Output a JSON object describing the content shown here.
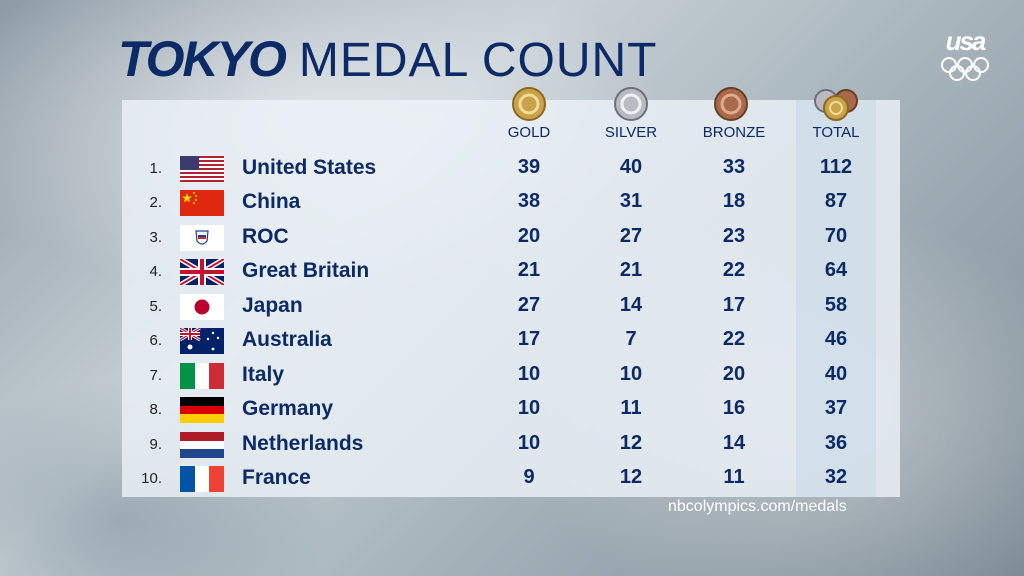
{
  "header": {
    "brand": "TOKYO",
    "title": "MEDAL COUNT"
  },
  "network": {
    "name": "usa",
    "logo_icon": "olympic-rings-icon"
  },
  "columns": {
    "gold": "GOLD",
    "silver": "SILVER",
    "bronze": "BRONZE",
    "total": "TOTAL"
  },
  "colors": {
    "text": "#0b2a66",
    "gold": "#c9a24a",
    "silver": "#b8bcc2",
    "bronze": "#a86a4b"
  },
  "rows": [
    {
      "rank": "1.",
      "country": "United States",
      "flag": "usa-flag-icon",
      "gold": "39",
      "silver": "40",
      "bronze": "33",
      "total": "112"
    },
    {
      "rank": "2.",
      "country": "China",
      "flag": "china-flag-icon",
      "gold": "38",
      "silver": "31",
      "bronze": "18",
      "total": "87"
    },
    {
      "rank": "3.",
      "country": "ROC",
      "flag": "roc-emblem-icon",
      "gold": "20",
      "silver": "27",
      "bronze": "23",
      "total": "70"
    },
    {
      "rank": "4.",
      "country": "Great Britain",
      "flag": "great-britain-flag-icon",
      "gold": "21",
      "silver": "21",
      "bronze": "22",
      "total": "64"
    },
    {
      "rank": "5.",
      "country": "Japan",
      "flag": "japan-flag-icon",
      "gold": "27",
      "silver": "14",
      "bronze": "17",
      "total": "58"
    },
    {
      "rank": "6.",
      "country": "Australia",
      "flag": "australia-flag-icon",
      "gold": "17",
      "silver": "7",
      "bronze": "22",
      "total": "46"
    },
    {
      "rank": "7.",
      "country": "Italy",
      "flag": "italy-flag-icon",
      "gold": "10",
      "silver": "10",
      "bronze": "20",
      "total": "40"
    },
    {
      "rank": "8.",
      "country": "Germany",
      "flag": "germany-flag-icon",
      "gold": "10",
      "silver": "11",
      "bronze": "16",
      "total": "37"
    },
    {
      "rank": "9.",
      "country": "Netherlands",
      "flag": "netherlands-flag-icon",
      "gold": "10",
      "silver": "12",
      "bronze": "14",
      "total": "36"
    },
    {
      "rank": "10.",
      "country": "France",
      "flag": "france-flag-icon",
      "gold": "9",
      "silver": "12",
      "bronze": "11",
      "total": "32"
    }
  ],
  "footer": {
    "url": "nbcolympics.com/medals"
  }
}
